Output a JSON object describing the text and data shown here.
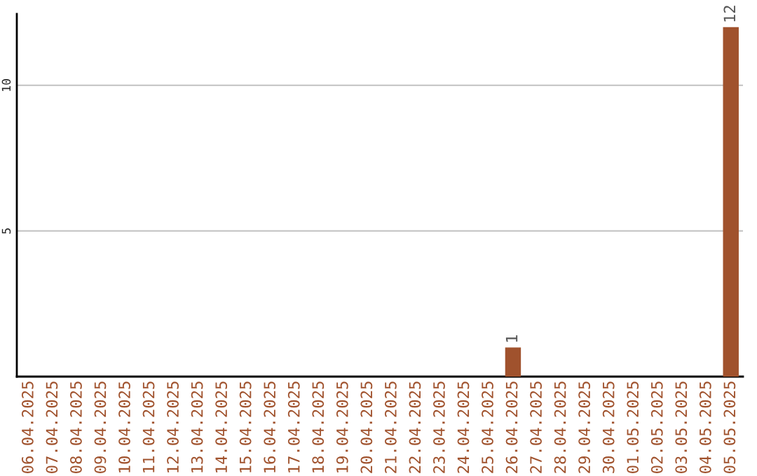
{
  "chart_data": {
    "type": "bar",
    "categories": [
      "06.04.2025",
      "07.04.2025",
      "08.04.2025",
      "09.04.2025",
      "10.04.2025",
      "11.04.2025",
      "12.04.2025",
      "13.04.2025",
      "14.04.2025",
      "15.04.2025",
      "16.04.2025",
      "17.04.2025",
      "18.04.2025",
      "19.04.2025",
      "20.04.2025",
      "21.04.2025",
      "22.04.2025",
      "23.04.2025",
      "24.04.2025",
      "25.04.2025",
      "26.04.2025",
      "27.04.2025",
      "28.04.2025",
      "29.04.2025",
      "30.04.2025",
      "01.05.2025",
      "02.05.2025",
      "03.05.2025",
      "04.05.2025",
      "05.05.2025"
    ],
    "values": [
      0,
      0,
      0,
      0,
      0,
      0,
      0,
      0,
      0,
      0,
      0,
      0,
      0,
      0,
      0,
      0,
      0,
      0,
      0,
      0,
      1,
      0,
      0,
      0,
      0,
      0,
      0,
      0,
      0,
      12
    ],
    "value_labels": [
      null,
      null,
      null,
      null,
      null,
      null,
      null,
      null,
      null,
      null,
      null,
      null,
      null,
      null,
      null,
      null,
      null,
      null,
      null,
      null,
      "1",
      null,
      null,
      null,
      null,
      null,
      null,
      null,
      null,
      "12"
    ],
    "color": "#a0522d",
    "ylim": [
      0,
      12.45
    ],
    "yticks": [
      5,
      10
    ],
    "grid": "y"
  }
}
